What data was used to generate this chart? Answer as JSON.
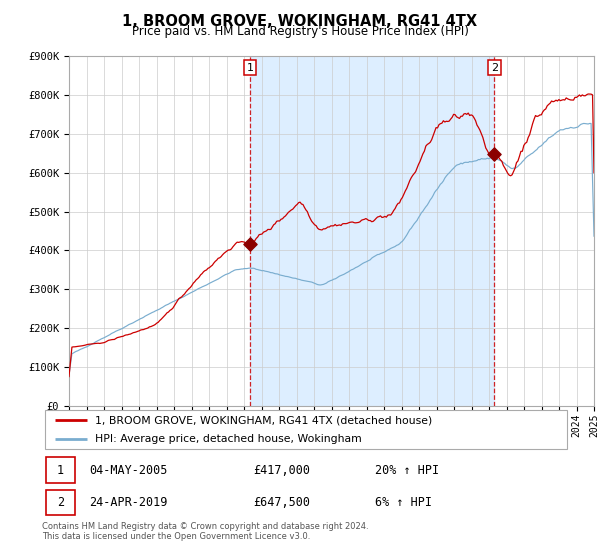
{
  "title": "1, BROOM GROVE, WOKINGHAM, RG41 4TX",
  "subtitle": "Price paid vs. HM Land Registry's House Price Index (HPI)",
  "legend_line1": "1, BROOM GROVE, WOKINGHAM, RG41 4TX (detached house)",
  "legend_line2": "HPI: Average price, detached house, Wokingham",
  "sale1_date": "04-MAY-2005",
  "sale1_price": "£417,000",
  "sale1_hpi": "20% ↑ HPI",
  "sale1_year": 2005.34,
  "sale1_value": 417000,
  "sale2_date": "24-APR-2019",
  "sale2_price": "£647,500",
  "sale2_hpi": "6% ↑ HPI",
  "sale2_year": 2019.31,
  "sale2_value": 647500,
  "red_color": "#cc0000",
  "blue_color": "#7aadcf",
  "bg_shade_color": "#ddeeff",
  "grid_color": "#cccccc",
  "ylabel_ticks": [
    "£0",
    "£100K",
    "£200K",
    "£300K",
    "£400K",
    "£500K",
    "£600K",
    "£700K",
    "£800K",
    "£900K"
  ],
  "ytick_values": [
    0,
    100000,
    200000,
    300000,
    400000,
    500000,
    600000,
    700000,
    800000,
    900000
  ],
  "xstart": 1995,
  "xend": 2025,
  "footnote": "Contains HM Land Registry data © Crown copyright and database right 2024.\nThis data is licensed under the Open Government Licence v3.0."
}
